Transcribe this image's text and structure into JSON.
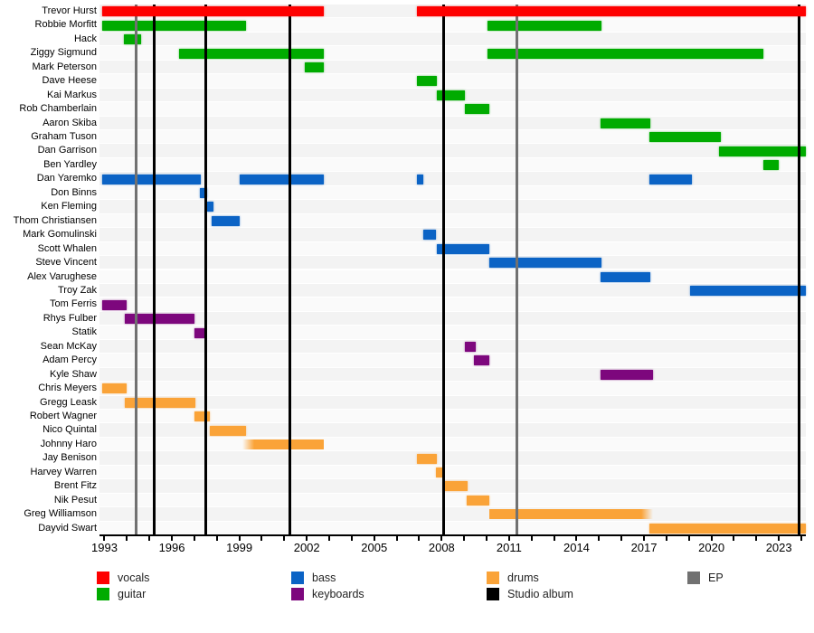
{
  "chart_data": {
    "type": "bar",
    "subtype": "member-timeline-gantt",
    "axis": {
      "min_year": 1992.9,
      "max_year": 2024.2,
      "tick_first": 1993,
      "tick_last": 2024,
      "tick_step": 1,
      "label_years": [
        "1993",
        "1996",
        "1999",
        "2002",
        "2005",
        "2008",
        "2011",
        "2014",
        "2017",
        "2020",
        "2023"
      ],
      "label_step": 3
    },
    "roles": {
      "vocals": "#FE0000",
      "guitar": "#00AB00",
      "bass": "#0B63C5",
      "keyboards": "#7D077D",
      "drums": "#FAA338"
    },
    "release_colors": {
      "Studio album": "#000000",
      "EP": "#717171"
    },
    "releases": [
      {
        "year": 1994.4,
        "type": "EP"
      },
      {
        "year": 1995.2,
        "type": "Studio album"
      },
      {
        "year": 1997.5,
        "type": "Studio album"
      },
      {
        "year": 2001.25,
        "type": "Studio album"
      },
      {
        "year": 2008.1,
        "type": "Studio album"
      },
      {
        "year": 2011.35,
        "type": "EP"
      },
      {
        "year": 2023.9,
        "type": "Studio album"
      }
    ],
    "members": [
      {
        "name": "Trevor Hurst",
        "role": "vocals",
        "segments": [
          {
            "start": 1992.9,
            "end": 2002.75
          },
          {
            "start": 2006.9,
            "end": 2024.2
          }
        ]
      },
      {
        "name": "Robbie Morfitt",
        "role": "guitar",
        "segments": [
          {
            "start": 1992.9,
            "end": 1999.3
          },
          {
            "start": 2010.05,
            "end": 2015.1
          }
        ]
      },
      {
        "name": "Hack",
        "role": "guitar",
        "segments": [
          {
            "start": 1993.85,
            "end": 1994.65
          }
        ]
      },
      {
        "name": "Ziggy Sigmund",
        "role": "guitar",
        "segments": [
          {
            "start": 1996.3,
            "end": 2002.75
          },
          {
            "start": 2010.05,
            "end": 2022.3
          }
        ]
      },
      {
        "name": "Mark Peterson",
        "role": "guitar",
        "segments": [
          {
            "start": 2001.9,
            "end": 2002.75
          }
        ]
      },
      {
        "name": "Dave Heese",
        "role": "guitar",
        "segments": [
          {
            "start": 2006.9,
            "end": 2007.8
          }
        ]
      },
      {
        "name": "Kai Markus",
        "role": "guitar",
        "segments": [
          {
            "start": 2007.8,
            "end": 2009.05
          }
        ]
      },
      {
        "name": "Rob Chamberlain",
        "role": "guitar",
        "segments": [
          {
            "start": 2009.05,
            "end": 2010.1
          }
        ]
      },
      {
        "name": "Aaron Skiba",
        "role": "guitar",
        "segments": [
          {
            "start": 2015.05,
            "end": 2017.3
          }
        ]
      },
      {
        "name": "Graham Tuson",
        "role": "guitar",
        "segments": [
          {
            "start": 2017.25,
            "end": 2020.4
          }
        ]
      },
      {
        "name": "Dan Garrison",
        "role": "guitar",
        "segments": [
          {
            "start": 2020.35,
            "end": 2024.2
          }
        ]
      },
      {
        "name": "Ben Yardley",
        "role": "guitar",
        "segments": [
          {
            "start": 2022.3,
            "end": 2023.0
          }
        ]
      },
      {
        "name": "Dan Yaremko",
        "role": "bass",
        "segments": [
          {
            "start": 1992.9,
            "end": 1997.3
          },
          {
            "start": 1999.0,
            "end": 2002.75
          },
          {
            "start": 2006.9,
            "end": 2007.2
          },
          {
            "start": 2017.25,
            "end": 2019.15
          }
        ]
      },
      {
        "name": "Don Binns",
        "role": "bass",
        "segments": [
          {
            "start": 1997.25,
            "end": 1997.55
          }
        ]
      },
      {
        "name": "Ken Fleming",
        "role": "bass",
        "segments": [
          {
            "start": 1997.55,
            "end": 1997.85
          }
        ]
      },
      {
        "name": "Thom Christiansen",
        "role": "bass",
        "segments": [
          {
            "start": 1997.75,
            "end": 1999.0
          }
        ]
      },
      {
        "name": "Mark Gomulinski",
        "role": "bass",
        "segments": [
          {
            "start": 2007.2,
            "end": 2007.75
          }
        ]
      },
      {
        "name": "Scott Whalen",
        "role": "bass",
        "segments": [
          {
            "start": 2007.8,
            "end": 2010.1
          }
        ]
      },
      {
        "name": "Steve Vincent",
        "role": "bass",
        "segments": [
          {
            "start": 2010.1,
            "end": 2015.1
          }
        ]
      },
      {
        "name": "Alex Varughese",
        "role": "bass",
        "segments": [
          {
            "start": 2015.05,
            "end": 2017.3
          }
        ]
      },
      {
        "name": "Troy Zak",
        "role": "bass",
        "segments": [
          {
            "start": 2019.05,
            "end": 2024.2
          }
        ]
      },
      {
        "name": "Tom Ferris",
        "role": "keyboards",
        "segments": [
          {
            "start": 1992.9,
            "end": 1994.0
          }
        ]
      },
      {
        "name": "Rhys Fulber",
        "role": "keyboards",
        "segments": [
          {
            "start": 1993.9,
            "end": 1997.0
          }
        ]
      },
      {
        "name": "Statik",
        "role": "keyboards",
        "segments": [
          {
            "start": 1997.0,
            "end": 1997.5
          }
        ]
      },
      {
        "name": "Sean McKay",
        "role": "keyboards",
        "segments": [
          {
            "start": 2009.05,
            "end": 2009.5
          }
        ]
      },
      {
        "name": "Adam Percy",
        "role": "keyboards",
        "segments": [
          {
            "start": 2009.45,
            "end": 2010.1
          }
        ]
      },
      {
        "name": "Kyle Shaw",
        "role": "keyboards",
        "segments": [
          {
            "start": 2015.05,
            "end": 2017.4
          }
        ]
      },
      {
        "name": "Chris Meyers",
        "role": "drums",
        "segments": [
          {
            "start": 1992.9,
            "end": 1994.0
          }
        ]
      },
      {
        "name": "Gregg Leask",
        "role": "drums",
        "segments": [
          {
            "start": 1993.9,
            "end": 1997.05
          }
        ]
      },
      {
        "name": "Robert Wagner",
        "role": "drums",
        "segments": [
          {
            "start": 1997.0,
            "end": 1997.7
          }
        ]
      },
      {
        "name": "Nico Quintal",
        "role": "drums",
        "segments": [
          {
            "start": 1997.7,
            "end": 1999.3
          }
        ]
      },
      {
        "name": "Johnny Haro",
        "role": "drums",
        "segments": [
          {
            "start": 1999.15,
            "end": 2002.75,
            "fade": "left"
          }
        ]
      },
      {
        "name": "Jay Benison",
        "role": "drums",
        "segments": [
          {
            "start": 2006.9,
            "end": 2007.8
          }
        ]
      },
      {
        "name": "Harvey Warren",
        "role": "drums",
        "segments": [
          {
            "start": 2007.75,
            "end": 2008.05
          }
        ]
      },
      {
        "name": "Brent Fitz",
        "role": "drums",
        "segments": [
          {
            "start": 2008.05,
            "end": 2009.15
          }
        ]
      },
      {
        "name": "Nik Pesut",
        "role": "drums",
        "segments": [
          {
            "start": 2009.1,
            "end": 2010.1
          }
        ]
      },
      {
        "name": "Greg Williamson",
        "role": "drums",
        "segments": [
          {
            "start": 2010.1,
            "end": 2017.4,
            "fade": "right"
          }
        ]
      },
      {
        "name": "Dayvid Swart",
        "role": "drums",
        "segments": [
          {
            "start": 2017.25,
            "end": 2024.2
          }
        ]
      }
    ],
    "legend": [
      {
        "label": "vocals",
        "color": "#FE0000",
        "col": 0,
        "row": 0
      },
      {
        "label": "guitar",
        "color": "#00AB00",
        "col": 0,
        "row": 1
      },
      {
        "label": "bass",
        "color": "#0B63C5",
        "col": 1,
        "row": 0
      },
      {
        "label": "keyboards",
        "color": "#7D077D",
        "col": 1,
        "row": 1
      },
      {
        "label": "drums",
        "color": "#FAA338",
        "col": 2,
        "row": 0
      },
      {
        "label": "Studio album",
        "color": "#000000",
        "col": 2,
        "row": 1
      },
      {
        "label": "EP",
        "color": "#717171",
        "col": 3,
        "row": 0
      }
    ],
    "style": {
      "stripe_even": "#F3F3F3",
      "stripe_odd": "#FAFAFA"
    }
  }
}
